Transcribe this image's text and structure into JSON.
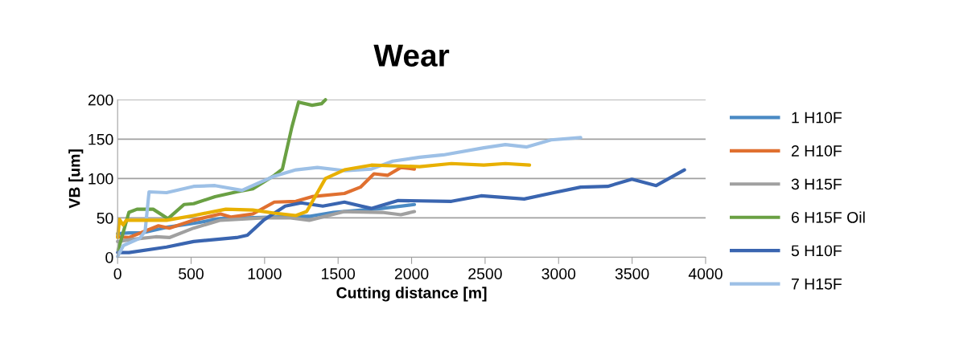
{
  "chart_data": {
    "type": "line",
    "title": "Wear",
    "xlabel": "Cutting distance [m]",
    "ylabel": "VB [um]",
    "xlim": [
      0,
      4000
    ],
    "xticks": [
      0,
      500,
      1000,
      1500,
      2000,
      2500,
      3000,
      3500,
      4000
    ],
    "ylim": [
      0,
      200
    ],
    "yticks": [
      0,
      50,
      100,
      150,
      200
    ],
    "grid": "y",
    "legend": "right",
    "marker": "none",
    "line_style": "solid",
    "series": [
      {
        "name": "1 H10F",
        "color": "#4a8ac4",
        "x": [
          0,
          77,
          169,
          333,
          517,
          700,
          1066,
          1304,
          1469,
          1799,
          2019
        ],
        "values": [
          30,
          31,
          31,
          38,
          43,
          49,
          51,
          52,
          57,
          62,
          67
        ]
      },
      {
        "name": "2 H10F",
        "color": "#e07030",
        "x": [
          0,
          77,
          278,
          352,
          517,
          700,
          773,
          920,
          1066,
          1213,
          1323,
          1543,
          1652,
          1744,
          1836,
          1927,
          2019
        ],
        "values": [
          26,
          25,
          40,
          37,
          47,
          55,
          51,
          55,
          70,
          71,
          77,
          81,
          89,
          106,
          104,
          114,
          112
        ]
      },
      {
        "name": "3 H15F",
        "color": "#a0a0a0",
        "x": [
          0,
          114,
          260,
          352,
          517,
          700,
          993,
          1176,
          1304,
          1543,
          1799,
          1927,
          2019
        ],
        "values": [
          20,
          23,
          26,
          25,
          37,
          47,
          50,
          50,
          47,
          58,
          57,
          54,
          58
        ]
      },
      {
        "name": "6 H15F Oil",
        "color": "#6aa043",
        "x": [
          4,
          77,
          132,
          242,
          343,
          452,
          517,
          663,
          810,
          920,
          1066,
          1121,
          1185,
          1231,
          1323,
          1387,
          1414
        ],
        "values": [
          9,
          57,
          61,
          61,
          49,
          67,
          68,
          77,
          83,
          87,
          104,
          112,
          165,
          197,
          193,
          195,
          200
        ]
      },
      {
        "name": "5 H10F",
        "color": "#3a65b0",
        "x": [
          0,
          77,
          333,
          517,
          810,
          883,
          993,
          1140,
          1249,
          1396,
          1543,
          1726,
          1909,
          2271,
          2473,
          2766,
          2967,
          3150,
          3334,
          3499,
          3664,
          3856
        ],
        "values": [
          6,
          6,
          13,
          20,
          25,
          28,
          47,
          65,
          69,
          65,
          70,
          62,
          72,
          71,
          78,
          74,
          82,
          89,
          90,
          99,
          91,
          111
        ]
      },
      {
        "name": "7 H15F",
        "color": "#9dc0e6",
        "x": [
          0,
          40,
          150,
          187,
          214,
          333,
          517,
          663,
          846,
          956,
          1066,
          1213,
          1359,
          1543,
          1726,
          1872,
          2055,
          2216,
          2491,
          2638,
          2784,
          2949,
          3150
        ],
        "values": [
          1,
          15,
          24,
          33,
          83,
          82,
          90,
          91,
          85,
          94,
          103,
          111,
          114,
          110,
          112,
          122,
          127,
          130,
          139,
          143,
          140,
          149,
          152
        ]
      },
      {
        "color": "#e8b000",
        "x": [
          0,
          13,
          37,
          59,
          333,
          517,
          736,
          920,
          1066,
          1213,
          1286,
          1414,
          1543,
          1726,
          2055,
          2271,
          2491,
          2638,
          2802
        ],
        "values": [
          25,
          48,
          41,
          47,
          47,
          53,
          61,
          60,
          56,
          53,
          58,
          100,
          111,
          117,
          115,
          119,
          117,
          119,
          117
        ]
      }
    ]
  }
}
